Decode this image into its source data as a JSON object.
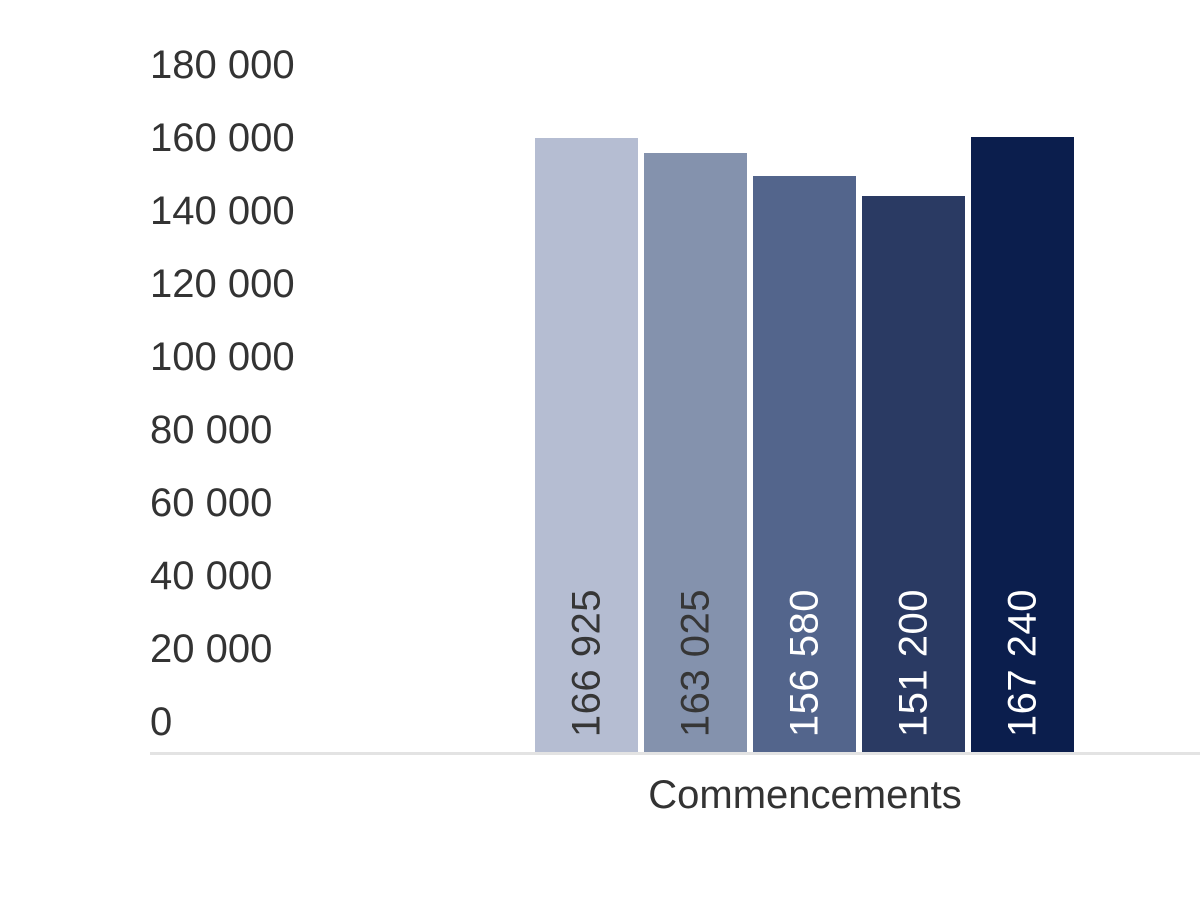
{
  "chart_data": {
    "type": "bar",
    "title": "",
    "x_axis_label": "Commencements",
    "values": [
      166925,
      163025,
      156580,
      151200,
      167240
    ],
    "bar_labels": [
      "166 925",
      "163 025",
      "156 580",
      "151 200",
      "167 240"
    ],
    "y_ticks": [
      "180 000",
      "160 000",
      "140 000",
      "120 000",
      "100 000",
      "80 000",
      "60 000",
      "40 000",
      "20 000",
      "0"
    ],
    "ylim": [
      0,
      180000
    ],
    "grid": "off",
    "legend": "none",
    "bar_colors": [
      "#b5bdd2",
      "#8492ad",
      "#53658c",
      "#2a3a63",
      "#0b1e4d"
    ],
    "bar_label_text_colors": [
      "#363636",
      "#363636",
      "#ffffff",
      "#ffffff",
      "#ffffff"
    ],
    "axis_line_color": "#e3e3e3",
    "text_color": "#333333",
    "background_color": "#ffffff"
  }
}
